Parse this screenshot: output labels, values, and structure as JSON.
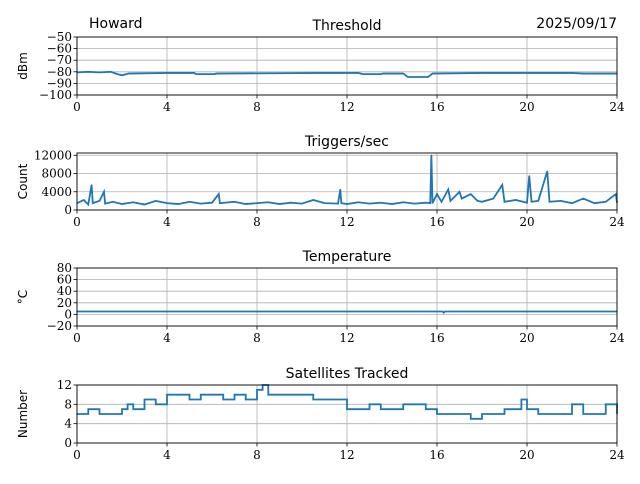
{
  "header": {
    "station": "Howard",
    "date": "2025/09/17"
  },
  "chart_data": [
    {
      "type": "line",
      "title": "Threshold",
      "ylabel": "dBm",
      "xlim": [
        0,
        24
      ],
      "ylim": [
        -100,
        -50
      ],
      "xticks": [
        "0",
        "4",
        "8",
        "12",
        "16",
        "20",
        "24"
      ],
      "yticks": [
        "−50",
        "−60",
        "−70",
        "−80",
        "−90",
        "−100"
      ],
      "ytick_values": [
        -50,
        -60,
        -70,
        -80,
        -90,
        -100
      ],
      "grid": true,
      "color": "#1f77b4",
      "step": false,
      "points": [
        [
          0,
          -80.5
        ],
        [
          0.5,
          -80
        ],
        [
          1,
          -80.5
        ],
        [
          1.5,
          -80
        ],
        [
          1.8,
          -82
        ],
        [
          2,
          -83
        ],
        [
          2.3,
          -81.5
        ],
        [
          4,
          -81
        ],
        [
          5.2,
          -81
        ],
        [
          5.3,
          -82
        ],
        [
          6.1,
          -82
        ],
        [
          6.2,
          -81.5
        ],
        [
          11,
          -81
        ],
        [
          12.5,
          -81
        ],
        [
          12.7,
          -82
        ],
        [
          13.5,
          -82
        ],
        [
          13.6,
          -81.5
        ],
        [
          14.5,
          -81.5
        ],
        [
          14.7,
          -84.5
        ],
        [
          15.6,
          -84.5
        ],
        [
          15.8,
          -81.5
        ],
        [
          18,
          -81
        ],
        [
          22,
          -81
        ],
        [
          22.5,
          -81.5
        ],
        [
          24,
          -81.5
        ]
      ]
    },
    {
      "type": "line",
      "title": "Triggers/sec",
      "ylabel": "Count",
      "xlim": [
        0,
        24
      ],
      "ylim": [
        0,
        12500
      ],
      "xticks": [
        "0",
        "4",
        "8",
        "12",
        "16",
        "20",
        "24"
      ],
      "yticks": [
        "12000",
        "8000",
        "4000",
        "0"
      ],
      "ytick_values": [
        12000,
        8000,
        4000,
        0
      ],
      "grid": true,
      "color": "#1f77b4",
      "step": false,
      "points": [
        [
          0,
          1500
        ],
        [
          0.3,
          2200
        ],
        [
          0.5,
          1200
        ],
        [
          0.65,
          5500
        ],
        [
          0.7,
          1500
        ],
        [
          1,
          2000
        ],
        [
          1.2,
          4000
        ],
        [
          1.25,
          1400
        ],
        [
          1.6,
          1800
        ],
        [
          2,
          1300
        ],
        [
          2.5,
          1700
        ],
        [
          3,
          1200
        ],
        [
          3.5,
          2000
        ],
        [
          4,
          1500
        ],
        [
          4.5,
          1300
        ],
        [
          5,
          1800
        ],
        [
          5.5,
          1400
        ],
        [
          6,
          1600
        ],
        [
          6.3,
          3500
        ],
        [
          6.35,
          1500
        ],
        [
          7,
          1800
        ],
        [
          7.5,
          1300
        ],
        [
          8,
          1500
        ],
        [
          8.5,
          1700
        ],
        [
          9,
          1300
        ],
        [
          9.5,
          1600
        ],
        [
          10,
          1400
        ],
        [
          10.5,
          2200
        ],
        [
          11,
          1500
        ],
        [
          11.6,
          1400
        ],
        [
          11.7,
          4500
        ],
        [
          11.75,
          1500
        ],
        [
          12,
          1300
        ],
        [
          12.5,
          1700
        ],
        [
          13,
          1400
        ],
        [
          13.5,
          1600
        ],
        [
          14,
          1300
        ],
        [
          14.5,
          1700
        ],
        [
          15,
          1400
        ],
        [
          15.5,
          1600
        ],
        [
          15.7,
          1500
        ],
        [
          15.75,
          12000
        ],
        [
          15.8,
          1500
        ],
        [
          16,
          3500
        ],
        [
          16.2,
          1800
        ],
        [
          16.5,
          4500
        ],
        [
          16.6,
          2000
        ],
        [
          17,
          4000
        ],
        [
          17.1,
          2500
        ],
        [
          17.5,
          3500
        ],
        [
          17.8,
          2000
        ],
        [
          18,
          1800
        ],
        [
          18.5,
          2500
        ],
        [
          18.9,
          5500
        ],
        [
          19,
          1800
        ],
        [
          19.5,
          2200
        ],
        [
          20,
          1600
        ],
        [
          20.1,
          7500
        ],
        [
          20.2,
          1800
        ],
        [
          20.5,
          2000
        ],
        [
          20.9,
          8500
        ],
        [
          21,
          1800
        ],
        [
          21.5,
          2000
        ],
        [
          22,
          1500
        ],
        [
          22.5,
          2500
        ],
        [
          23,
          1500
        ],
        [
          23.5,
          1800
        ],
        [
          23.95,
          3500
        ],
        [
          24,
          1600
        ]
      ]
    },
    {
      "type": "line",
      "title": "Temperature",
      "ylabel": "°C",
      "xlim": [
        0,
        24
      ],
      "ylim": [
        -20,
        80
      ],
      "xticks": [
        "0",
        "4",
        "8",
        "12",
        "16",
        "20",
        "24"
      ],
      "yticks": [
        "80",
        "60",
        "40",
        "20",
        "0",
        "−20"
      ],
      "ytick_values": [
        80,
        60,
        40,
        20,
        0,
        -20
      ],
      "grid": true,
      "color": "#1f77b4",
      "step": false,
      "points": [
        [
          0,
          5
        ],
        [
          16.25,
          5
        ],
        [
          16.3,
          3
        ],
        [
          16.35,
          5
        ],
        [
          24,
          5
        ]
      ]
    },
    {
      "type": "line",
      "title": "Satellites Tracked",
      "ylabel": "Number",
      "xlim": [
        0,
        24
      ],
      "ylim": [
        0,
        12
      ],
      "xticks": [
        "0",
        "4",
        "8",
        "12",
        "16",
        "20",
        "24"
      ],
      "yticks": [
        "12",
        "8",
        "4",
        "0"
      ],
      "ytick_values": [
        12,
        8,
        4,
        0
      ],
      "grid": true,
      "color": "#1f77b4",
      "step": true,
      "points": [
        [
          0,
          6
        ],
        [
          0.5,
          7
        ],
        [
          1,
          6
        ],
        [
          1.5,
          6
        ],
        [
          2,
          7
        ],
        [
          2.25,
          8
        ],
        [
          2.5,
          7
        ],
        [
          3,
          9
        ],
        [
          3.5,
          8
        ],
        [
          4,
          10
        ],
        [
          4.5,
          10
        ],
        [
          5,
          9
        ],
        [
          5.5,
          10
        ],
        [
          6,
          10
        ],
        [
          6.5,
          9
        ],
        [
          7,
          10
        ],
        [
          7.5,
          9
        ],
        [
          8,
          11
        ],
        [
          8.25,
          12
        ],
        [
          8.5,
          10
        ],
        [
          9,
          10
        ],
        [
          9.5,
          10
        ],
        [
          10,
          10
        ],
        [
          10.5,
          9
        ],
        [
          11,
          9
        ],
        [
          11.5,
          9
        ],
        [
          12,
          7
        ],
        [
          12.5,
          7
        ],
        [
          13,
          8
        ],
        [
          13.5,
          7
        ],
        [
          14,
          7
        ],
        [
          14.5,
          8
        ],
        [
          15,
          8
        ],
        [
          15.5,
          7
        ],
        [
          16,
          6
        ],
        [
          16.5,
          6
        ],
        [
          17,
          6
        ],
        [
          17.5,
          5
        ],
        [
          18,
          6
        ],
        [
          18.5,
          6
        ],
        [
          19,
          7
        ],
        [
          19.5,
          7
        ],
        [
          19.75,
          9
        ],
        [
          20,
          7
        ],
        [
          20.5,
          6
        ],
        [
          21,
          6
        ],
        [
          21.5,
          6
        ],
        [
          22,
          8
        ],
        [
          22.5,
          6
        ],
        [
          23,
          6
        ],
        [
          23.5,
          8
        ],
        [
          24,
          6
        ]
      ]
    }
  ]
}
